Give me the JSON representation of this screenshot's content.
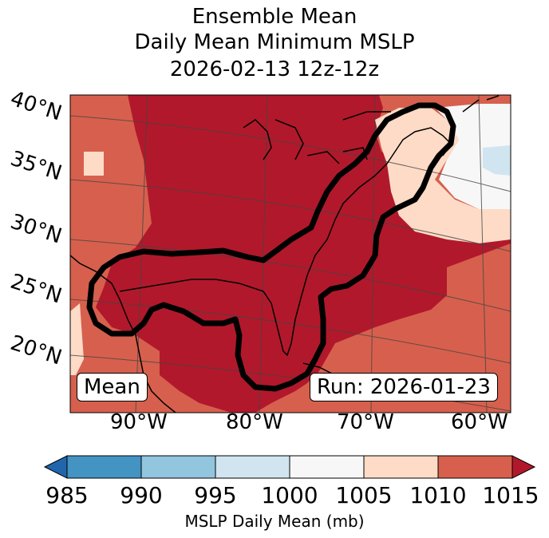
{
  "title": {
    "line1": "Ensemble Mean",
    "line2": "Daily Mean Minimum MSLP",
    "line3": "2026-02-13 12z-12z"
  },
  "labels": {
    "left_box": "Mean",
    "right_box": "Run: 2026-01-23"
  },
  "latitude_labels": [
    "40°N",
    "35°N",
    "30°N",
    "25°N",
    "20°N"
  ],
  "longitude_labels": [
    "90°W",
    "80°W",
    "70°W",
    "60°W"
  ],
  "colorbar": {
    "label": "MSLP Daily Mean (mb)",
    "ticks": [
      "985",
      "990",
      "995",
      "1000",
      "1005",
      "1010",
      "1015"
    ],
    "colors": {
      "lt985": "#2166ac",
      "b985_990": "#4393c3",
      "b990_995": "#92c5de",
      "b995_1000": "#d1e5f0",
      "b1000_1005": "#f7f7f7",
      "b1005_1010": "#fddbc7",
      "b1010_1015": "#d6604d",
      "gt1015": "#b2182b"
    }
  }
}
